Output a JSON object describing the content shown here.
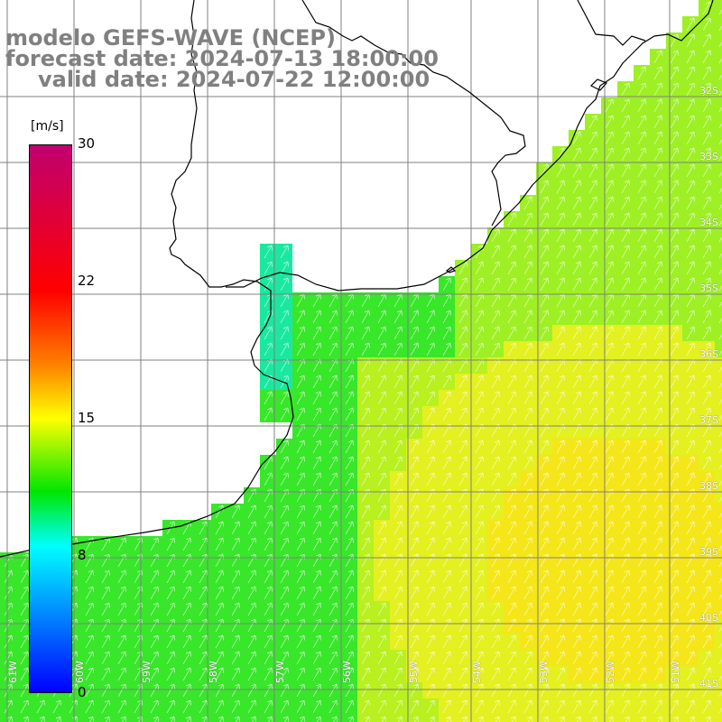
{
  "title": {
    "model": "modelo GEFS-WAVE (NCEP)",
    "forecast": "forecast date: 2024-07-13 18:00:00",
    "valid": "valid date: 2024-07-22 12:00:00"
  },
  "colorbar": {
    "unit": "[m/s]",
    "ticks": [
      "30",
      "22",
      "15",
      "8",
      "0"
    ],
    "colors": [
      "#c0006f",
      "#ff0000",
      "#ff8000",
      "#ffff00",
      "#00e600",
      "#00ffff",
      "#0000ff"
    ]
  },
  "lat_labels": [
    "32S",
    "33S",
    "34S",
    "35S",
    "36S",
    "37S",
    "38S",
    "39S",
    "40S",
    "41S"
  ],
  "lon_labels": [
    "61W",
    "60W",
    "59W",
    "58W",
    "57W",
    "56W",
    "55W",
    "54W",
    "53W",
    "52W",
    "51W"
  ],
  "colors": {
    "land": "#ffffff",
    "grid": "#808080",
    "coast": "#000000",
    "arrow": "#ffffff"
  }
}
